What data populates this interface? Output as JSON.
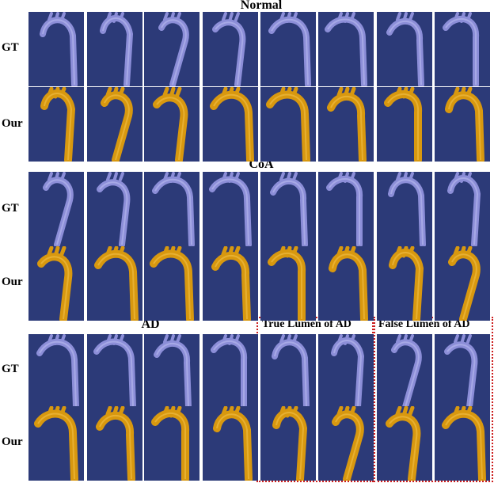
{
  "sections": {
    "normal": {
      "title": "Normal"
    },
    "coa": {
      "title": "CoA"
    },
    "ad": {
      "title": "AD"
    }
  },
  "row_labels": {
    "gt": "GT",
    "our": "Our"
  },
  "ad_boxes": {
    "true_lumen": "True Lumen of AD",
    "false_lumen": "False Lumen of AD"
  },
  "colors": {
    "panel_background": "#2c3a78",
    "gt_vessel": "#8c8ed8",
    "our_vessel": "#d8980f",
    "dashed_box": "#cc1e1e"
  }
}
